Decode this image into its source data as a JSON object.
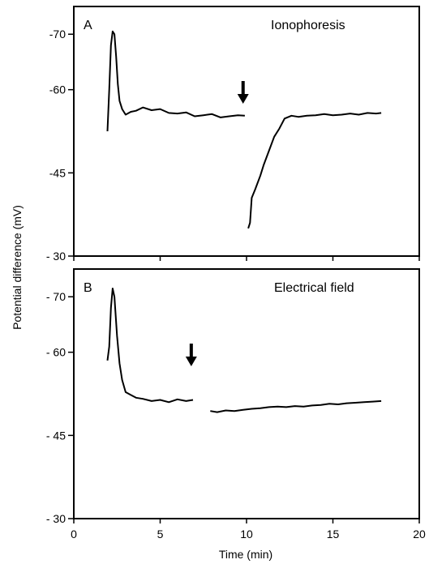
{
  "chart_data": {
    "type": "line",
    "xlabel": "Time (min)",
    "ylabel": "Potential difference (mV)",
    "xlim": [
      0,
      20
    ],
    "ylim": [
      -30,
      -75
    ],
    "x_ticks": [
      "0",
      "5",
      "10",
      "15",
      "20"
    ],
    "panels": [
      {
        "label": "A",
        "title": "Ionophoresis",
        "y_ticks": [
          "-70",
          "-60",
          "-45",
          "- 30"
        ],
        "arrow_at_x": 9.8,
        "series": [
          {
            "x": [
              1.95,
              2.05,
              2.15,
              2.25,
              2.35,
              2.45,
              2.55,
              2.65,
              2.8,
              3.0,
              3.3,
              3.6,
              4.0,
              4.5,
              5.0,
              5.5,
              6.0,
              6.5,
              7.0,
              7.5,
              8.0,
              8.5,
              9.0,
              9.5,
              9.9
            ],
            "y": [
              -52.5,
              -60.0,
              -68.0,
              -70.5,
              -70.0,
              -66.0,
              -61.0,
              -58.0,
              -56.5,
              -55.5,
              -56.0,
              -56.2,
              -56.8,
              -56.3,
              -56.5,
              -55.8,
              -55.7,
              -55.9,
              -55.2,
              -55.4,
              -55.6,
              -55.0,
              -55.2,
              -55.4,
              -55.3
            ]
          },
          {
            "x": [
              10.1,
              10.2,
              10.3,
              10.5,
              10.8,
              11.0,
              11.3,
              11.6,
              11.9,
              12.2,
              12.6,
              13.0,
              13.5,
              14.0,
              14.5,
              15.0,
              15.5,
              16.0,
              16.5,
              17.0,
              17.5,
              17.8
            ],
            "y": [
              -35.0,
              -36.0,
              -40.5,
              -42.0,
              -44.5,
              -46.5,
              -49.0,
              -51.5,
              -53.0,
              -54.8,
              -55.3,
              -55.1,
              -55.3,
              -55.4,
              -55.6,
              -55.4,
              -55.5,
              -55.7,
              -55.5,
              -55.8,
              -55.7,
              -55.8
            ]
          }
        ]
      },
      {
        "label": "B",
        "title": "Electrical field",
        "y_ticks": [
          "- 70",
          "- 60",
          "- 45",
          "- 30"
        ],
        "arrow_at_x": 6.8,
        "series": [
          {
            "x": [
              1.95,
              2.05,
              2.15,
              2.25,
              2.35,
              2.5,
              2.65,
              2.8,
              3.0,
              3.3,
              3.6,
              4.0,
              4.5,
              5.0,
              5.5,
              6.0,
              6.5,
              6.9
            ],
            "y": [
              -58.5,
              -61.0,
              -68.0,
              -71.5,
              -70.0,
              -63.0,
              -58.0,
              -55.0,
              -52.8,
              -52.3,
              -51.8,
              -51.6,
              -51.2,
              -51.4,
              -51.0,
              -51.5,
              -51.2,
              -51.4
            ]
          },
          {
            "x": [
              7.9,
              8.3,
              8.8,
              9.3,
              9.8,
              10.3,
              10.8,
              11.3,
              11.8,
              12.3,
              12.8,
              13.3,
              13.8,
              14.3,
              14.8,
              15.3,
              15.8,
              16.3,
              16.8,
              17.3,
              17.8
            ],
            "y": [
              -49.4,
              -49.2,
              -49.5,
              -49.4,
              -49.6,
              -49.8,
              -49.9,
              -50.1,
              -50.2,
              -50.1,
              -50.3,
              -50.2,
              -50.4,
              -50.5,
              -50.7,
              -50.6,
              -50.8,
              -50.9,
              -51.0,
              -51.1,
              -51.2
            ]
          }
        ]
      }
    ]
  }
}
